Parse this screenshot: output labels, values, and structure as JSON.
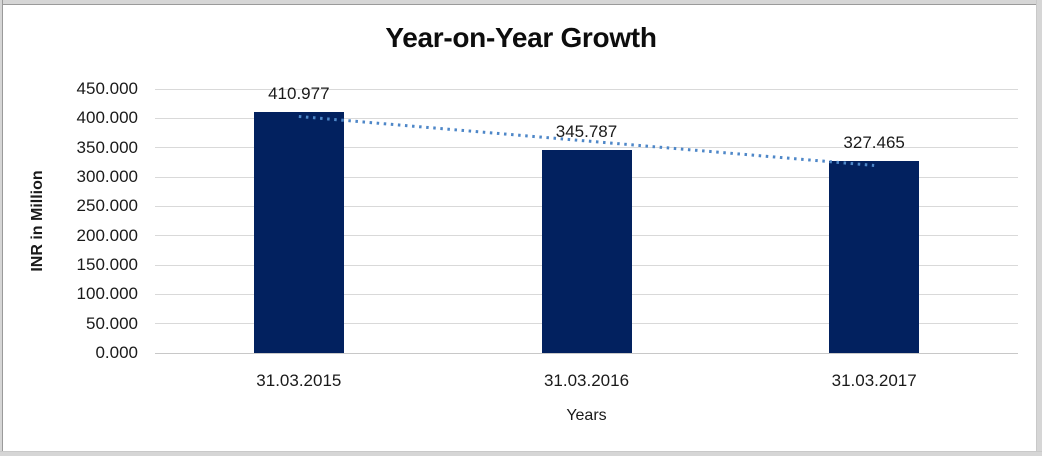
{
  "chart_data": {
    "type": "bar",
    "title": "Year-on-Year Growth",
    "categories": [
      "31.03.2015",
      "31.03.2016",
      "31.03.2017"
    ],
    "values": [
      410.977,
      345.787,
      327.465
    ],
    "data_labels": [
      "410.977",
      "345.787",
      "327.465"
    ],
    "xlabel": "Years",
    "ylabel": "INR in Million",
    "ylim": [
      0,
      450
    ],
    "ytick_step": 50,
    "ytick_labels": [
      "0.000",
      "50.000",
      "100.000",
      "150.000",
      "200.000",
      "250.000",
      "300.000",
      "350.000",
      "400.000",
      "450.000"
    ],
    "grid": true,
    "legend": "none",
    "trendline": {
      "type": "linear",
      "style": "dotted",
      "fitted_values": [
        403.17,
        361.41,
        319.66
      ]
    },
    "colors": {
      "bar": "#02215f",
      "trendline": "#4e87c8",
      "gridline": "#d9d9d9",
      "text": "#1a1a1a",
      "frame": "#d6d6d6"
    }
  }
}
